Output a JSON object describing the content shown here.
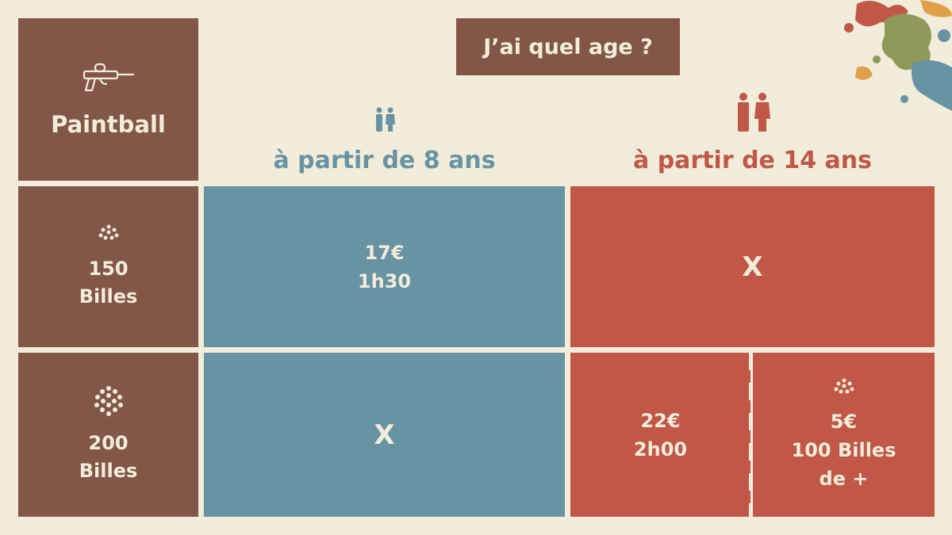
{
  "title": "J’ai quel age ?",
  "corner": {
    "label": "Paintball",
    "icon": "paintball-gun-icon"
  },
  "columns": [
    {
      "label": "à partir de 8 ans",
      "icon": "children-icon",
      "color": "#6893a2"
    },
    {
      "label": "à partir de 14 ans",
      "icon": "adults-icon",
      "color": "#c05747"
    }
  ],
  "rows": [
    {
      "number": "150",
      "unit": "Billes",
      "icon": "paintballs-small-icon"
    },
    {
      "number": "200",
      "unit": "Billes",
      "icon": "paintballs-large-icon"
    }
  ],
  "cells": {
    "r1_8": {
      "price": "17€",
      "duration": "1h30"
    },
    "r1_14": {
      "mark": "X"
    },
    "r2_8": {
      "mark": "X"
    },
    "r2_14": {
      "price": "22€",
      "duration": "2h00"
    },
    "extra": {
      "price": "5€",
      "line2": "100 Billes",
      "line3": "de +",
      "icon": "paintballs-small-icon"
    }
  },
  "colors": {
    "background": "#f2ecdb",
    "brown": "#835747",
    "blue": "#6893a2",
    "red": "#c05747"
  }
}
